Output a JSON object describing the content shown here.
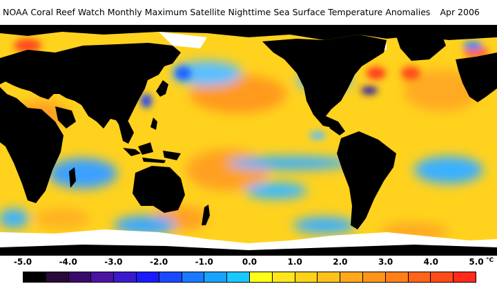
{
  "header": {
    "title": "NOAA Coral Reef Watch Monthly Maximum Satellite Nighttime Sea Surface Temperature Anomalies",
    "date": "Apr 2006"
  },
  "map": {
    "colors": {
      "land": "#000000",
      "ice": "#ffffff",
      "ocean_base": "#ffd21e",
      "warm": "#ff9a1a",
      "hot": "#ff3b1a",
      "cool": "#3ab0ff",
      "cold": "#1060ff",
      "very_cold": "#2a1aa8"
    }
  },
  "legend": {
    "unit": "°C",
    "labels": [
      "-5.0",
      "-4.0",
      "-3.0",
      "-2.0",
      "-1.0",
      "0.0",
      "1.0",
      "2.0",
      "3.0",
      "4.0",
      "5.0"
    ],
    "swatches": [
      "#000000",
      "#2a0a3a",
      "#3a0a6a",
      "#4a14a0",
      "#3a1acc",
      "#1a1aff",
      "#1a4aff",
      "#1a7aff",
      "#1aa2ff",
      "#1ac8ff",
      "#ffff1a",
      "#ffe61a",
      "#ffd21a",
      "#ffc21a",
      "#ffa81a",
      "#ff941a",
      "#ff801a",
      "#ff641a",
      "#ff4a1a",
      "#ff2a1a"
    ]
  }
}
